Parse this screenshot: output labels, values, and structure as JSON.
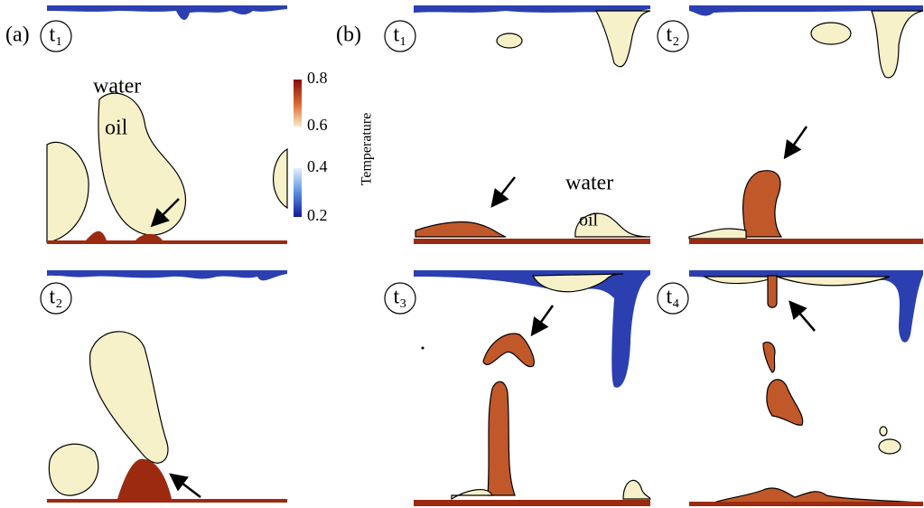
{
  "panel_a": {
    "label": "(a)",
    "times": [
      "t₁",
      "t₂"
    ],
    "water": "water",
    "oil": "oil"
  },
  "colorbar": {
    "title": "Temperature",
    "ticks": [
      "0.8",
      "0.6",
      "0.4",
      "0.2"
    ]
  },
  "panel_b": {
    "label": "(b)",
    "times": [
      "t₁",
      "t₂",
      "t₃",
      "t₄"
    ],
    "water": "water",
    "oil": "oil"
  }
}
